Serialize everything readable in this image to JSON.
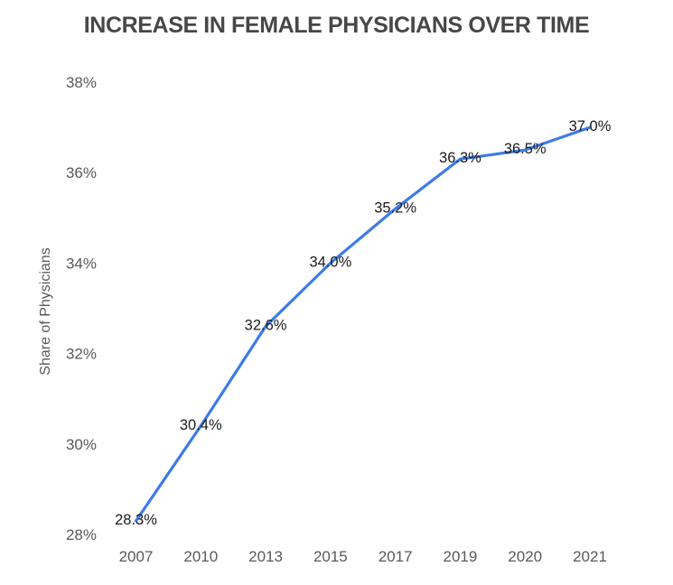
{
  "chart_data": {
    "type": "line",
    "title": "INCREASE IN FEMALE PHYSICIANS OVER TIME",
    "xlabel": "",
    "ylabel": "Share of Physicians",
    "categories": [
      "2007",
      "2010",
      "2013",
      "2015",
      "2017",
      "2019",
      "2020",
      "2021"
    ],
    "series": [
      {
        "name": "Share of Physicians",
        "values": [
          28.3,
          30.4,
          32.6,
          34.0,
          35.2,
          36.3,
          36.5,
          37.0
        ]
      }
    ],
    "data_labels": [
      "28.3%",
      "30.4%",
      "32.6%",
      "34.0%",
      "35.2%",
      "36.3%",
      "36.5%",
      "37.0%"
    ],
    "y_tick_labels": [
      "28%",
      "30%",
      "32%",
      "34%",
      "36%",
      "38%"
    ],
    "y_tick_values": [
      28,
      30,
      32,
      34,
      36,
      38
    ],
    "ylim": [
      28,
      38
    ],
    "grid": false,
    "legend_position": "none",
    "colors": {
      "line": "#3d7be8",
      "data_label": "#1b1b1b",
      "axis_text": "#58595b",
      "title": "#474747",
      "background": "#ffffff"
    }
  }
}
